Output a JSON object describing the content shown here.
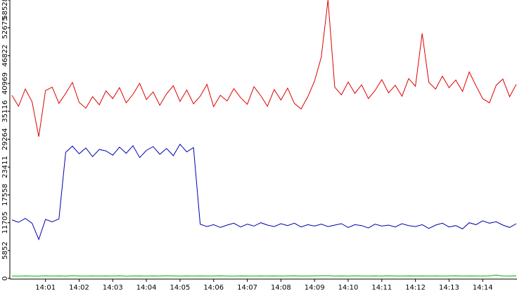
{
  "chart_data": {
    "type": "line",
    "x": [
      840.0,
      840.2,
      840.4,
      840.6,
      840.8,
      841.0,
      841.2,
      841.4,
      841.6,
      841.8,
      842.0,
      842.2,
      842.4,
      842.6,
      842.8,
      843.0,
      843.2,
      843.4,
      843.6,
      843.8,
      844.0,
      844.2,
      844.4,
      844.6,
      844.8,
      845.0,
      845.2,
      845.4,
      845.6,
      845.8,
      846.0,
      846.2,
      846.4,
      846.6,
      846.8,
      847.0,
      847.2,
      847.4,
      847.6,
      847.8,
      848.0,
      848.2,
      848.4,
      848.6,
      848.8,
      849.0,
      849.2,
      849.4,
      849.6,
      849.8,
      850.0,
      850.2,
      850.4,
      850.6,
      850.8,
      851.0,
      851.2,
      851.4,
      851.6,
      851.8,
      852.0,
      852.2,
      852.4,
      852.6,
      852.8,
      853.0,
      853.2,
      853.4,
      853.6,
      853.8,
      854.0,
      854.2,
      854.4,
      854.6,
      854.8,
      855.0
    ],
    "series": [
      {
        "color": "#e00000",
        "values": [
          38500,
          36200,
          39800,
          37100,
          29800,
          39500,
          40200,
          36800,
          38900,
          41200,
          37000,
          35800,
          38200,
          36500,
          39400,
          37800,
          40100,
          36900,
          38700,
          41000,
          37600,
          39200,
          36400,
          38800,
          40500,
          37200,
          39600,
          36700,
          38300,
          40800,
          36100,
          38500,
          37300,
          39900,
          38000,
          36600,
          40300,
          38400,
          36200,
          39700,
          37500,
          40000,
          36800,
          35600,
          38200,
          41500,
          46500,
          58528,
          40200,
          38600,
          41300,
          38900,
          40700,
          37800,
          39500,
          41800,
          39000,
          40600,
          38300,
          42000,
          40400,
          51500,
          41200,
          39800,
          42500,
          40100,
          41700,
          39300,
          43400,
          40500,
          37800,
          36900,
          40600,
          41900,
          38200,
          40800
        ]
      },
      {
        "color": "#0000b0",
        "values": [
          12300,
          11800,
          12600,
          11600,
          8200,
          12400,
          11900,
          12500,
          26500,
          27800,
          26200,
          27400,
          25600,
          27100,
          26800,
          25900,
          27600,
          26300,
          27900,
          25400,
          26900,
          27700,
          26100,
          27300,
          25800,
          28200,
          26600,
          27500,
          11400,
          10900,
          11300,
          10700,
          11200,
          11600,
          10800,
          11400,
          11000,
          11700,
          11200,
          10900,
          11500,
          11100,
          11600,
          10800,
          11300,
          11000,
          11400,
          10900,
          11200,
          11500,
          10700,
          11300,
          11100,
          10600,
          11400,
          11000,
          11200,
          10800,
          11500,
          11100,
          10900,
          11300,
          10500,
          11200,
          11600,
          10800,
          11100,
          10400,
          11700,
          11300,
          12100,
          11600,
          11900,
          11200,
          10700,
          11500
        ]
      },
      {
        "color": "#00b000",
        "values": [
          500,
          450,
          520,
          480,
          460,
          530,
          470,
          510,
          490,
          540,
          500,
          470,
          520,
          480,
          510,
          490,
          530,
          460,
          500,
          520,
          480,
          510,
          470,
          540,
          500,
          490,
          520,
          480,
          510,
          470,
          500,
          530,
          490,
          460,
          510,
          500,
          480,
          520,
          490,
          510,
          470,
          500,
          530,
          480,
          500,
          520,
          560,
          540,
          490,
          510,
          480,
          520,
          500,
          470,
          510,
          490,
          530,
          500,
          480,
          510,
          500,
          520,
          490,
          510,
          480,
          500,
          530,
          470,
          510,
          500,
          480,
          520,
          700,
          500,
          490,
          510
        ]
      }
    ],
    "xlim": [
      839.94,
      855.02
    ],
    "xticks": [
      {
        "value": 841,
        "label": "14:01"
      },
      {
        "value": 842,
        "label": "14:02"
      },
      {
        "value": 843,
        "label": "14:03"
      },
      {
        "value": 844,
        "label": "14:04"
      },
      {
        "value": 845,
        "label": "14:05"
      },
      {
        "value": 846,
        "label": "14:06"
      },
      {
        "value": 847,
        "label": "14:07"
      },
      {
        "value": 848,
        "label": "14:08"
      },
      {
        "value": 849,
        "label": "14:09"
      },
      {
        "value": 850,
        "label": "14:10"
      },
      {
        "value": 851,
        "label": "14:11"
      },
      {
        "value": 852,
        "label": "14:12"
      },
      {
        "value": 853,
        "label": "14:13"
      },
      {
        "value": 854,
        "label": "14:14"
      }
    ],
    "ylim": [
      0,
      58528
    ],
    "yticks": [
      0,
      5852,
      11705,
      17558,
      23411,
      29264,
      35116,
      40969,
      46822,
      52675,
      58528
    ]
  }
}
